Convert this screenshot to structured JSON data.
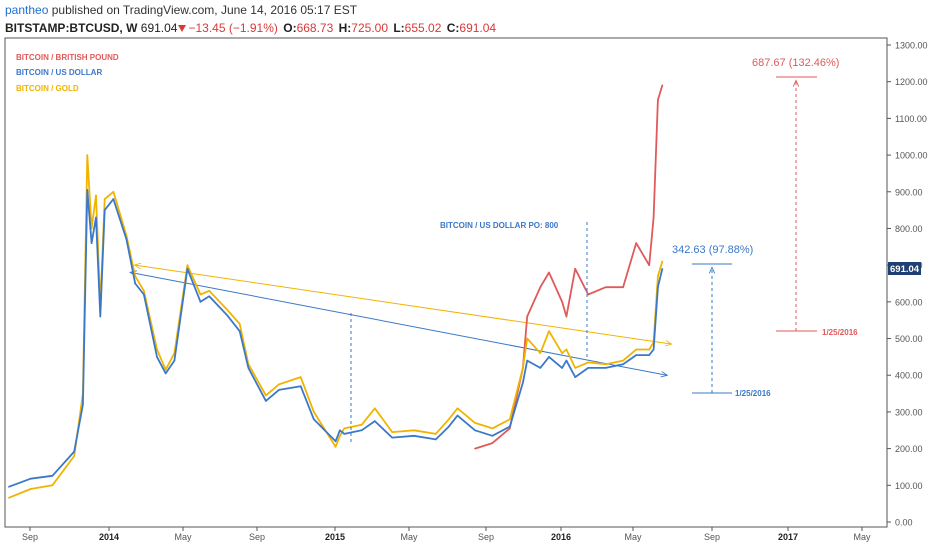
{
  "header": {
    "author": "pantheo",
    "published_text": "published on TradingView.com, June 14, 2016 05:17 EST",
    "symbol": "BITSTAMP:BTCUSD, W",
    "price": "691.04",
    "change": "−13.45 (−1.91%)",
    "open_label": "O:",
    "open": "668.73",
    "high_label": "H:",
    "high": "725.00",
    "low_label": "L:",
    "low": "655.02",
    "close_label": "C:",
    "close": "691.04"
  },
  "colors": {
    "gbp": "#e05a5a",
    "usd": "#3b78c8",
    "gold": "#f0b400",
    "axis_text": "#555555",
    "grid_border": "#555555",
    "price_badge": "#1f3f73"
  },
  "chart_data": {
    "type": "line",
    "y_axis": {
      "ylim": [
        0,
        1300
      ],
      "ticks": [
        "0.00",
        "100.00",
        "200.00",
        "300.00",
        "400.00",
        "500.00",
        "600.00",
        "700.00",
        "800.00",
        "900.00",
        "1000.00",
        "1100.00",
        "1200.00",
        "1300.00"
      ],
      "current_price_label": "691.04"
    },
    "x_axis": {
      "labels": [
        "Sep",
        "2014",
        "May",
        "Sep",
        "2015",
        "May",
        "Sep",
        "2016",
        "May",
        "Sep",
        "2017",
        "May"
      ]
    },
    "legend": [
      "BITCOIN / BRITISH POUND",
      "BITCOIN / US DOLLAR",
      "BITCOIN / GOLD"
    ],
    "series": [
      {
        "name": "BITCOIN / US DOLLAR",
        "x": [
          "2013-07-29",
          "2013-09-02",
          "2013-10-07",
          "2013-11-11",
          "2013-11-25",
          "2013-12-02",
          "2013-12-09",
          "2013-12-16",
          "2013-12-23",
          "2013-12-30",
          "2014-01-13",
          "2014-02-03",
          "2014-02-17",
          "2014-03-03",
          "2014-03-24",
          "2014-04-07",
          "2014-04-21",
          "2014-05-12",
          "2014-06-02",
          "2014-06-16",
          "2014-07-14",
          "2014-08-04",
          "2014-08-18",
          "2014-09-15",
          "2014-10-06",
          "2014-11-10",
          "2014-12-01",
          "2015-01-05",
          "2015-01-12",
          "2015-01-19",
          "2015-02-16",
          "2015-03-09",
          "2015-04-06",
          "2015-05-11",
          "2015-06-15",
          "2015-07-06",
          "2015-07-20",
          "2015-08-17",
          "2015-09-14",
          "2015-10-12",
          "2015-11-02",
          "2015-11-09",
          "2015-11-30",
          "2015-12-14",
          "2016-01-04",
          "2016-01-11",
          "2016-01-25",
          "2016-02-15",
          "2016-03-14",
          "2016-04-11",
          "2016-05-02",
          "2016-05-23",
          "2016-05-30",
          "2016-06-06",
          "2016-06-13"
        ],
        "values": [
          96,
          118,
          126,
          192,
          320,
          905,
          760,
          830,
          560,
          850,
          880,
          770,
          650,
          620,
          450,
          405,
          440,
          690,
          600,
          615,
          565,
          520,
          420,
          330,
          360,
          370,
          280,
          220,
          250,
          240,
          250,
          275,
          230,
          235,
          225,
          260,
          290,
          250,
          235,
          260,
          380,
          440,
          420,
          450,
          420,
          440,
          395,
          420,
          420,
          430,
          455,
          455,
          470,
          640,
          690
        ]
      },
      {
        "name": "BITCOIN / GOLD",
        "x": [
          "2013-07-29",
          "2013-09-02",
          "2013-10-07",
          "2013-11-11",
          "2013-11-25",
          "2013-12-02",
          "2013-12-09",
          "2013-12-16",
          "2013-12-23",
          "2013-12-30",
          "2014-01-13",
          "2014-02-03",
          "2014-02-17",
          "2014-03-03",
          "2014-03-24",
          "2014-04-07",
          "2014-04-21",
          "2014-05-12",
          "2014-06-02",
          "2014-06-16",
          "2014-07-14",
          "2014-08-04",
          "2014-08-18",
          "2014-09-15",
          "2014-10-06",
          "2014-11-10",
          "2014-12-01",
          "2015-01-05",
          "2015-01-12",
          "2015-01-19",
          "2015-02-16",
          "2015-03-09",
          "2015-04-06",
          "2015-05-11",
          "2015-06-15",
          "2015-07-06",
          "2015-07-20",
          "2015-08-17",
          "2015-09-14",
          "2015-10-12",
          "2015-11-02",
          "2015-11-09",
          "2015-11-30",
          "2015-12-14",
          "2016-01-04",
          "2016-01-11",
          "2016-01-25",
          "2016-02-15",
          "2016-03-14",
          "2016-04-11",
          "2016-05-02",
          "2016-05-23",
          "2016-05-30",
          "2016-06-06",
          "2016-06-13"
        ],
        "values": [
          66,
          90,
          100,
          180,
          350,
          1000,
          800,
          890,
          590,
          880,
          900,
          780,
          670,
          630,
          470,
          415,
          460,
          700,
          620,
          630,
          580,
          540,
          430,
          345,
          375,
          395,
          300,
          205,
          235,
          255,
          265,
          310,
          245,
          250,
          240,
          280,
          310,
          270,
          255,
          280,
          420,
          500,
          460,
          520,
          460,
          470,
          420,
          435,
          430,
          440,
          470,
          470,
          490,
          670,
          710
        ]
      },
      {
        "name": "BITCOIN / BRITISH POUND",
        "x": [
          "2015-08-17",
          "2015-09-14",
          "2015-10-12",
          "2015-11-02",
          "2015-11-09",
          "2015-11-30",
          "2015-12-14",
          "2016-01-04",
          "2016-01-11",
          "2016-01-25",
          "2016-02-15",
          "2016-03-14",
          "2016-04-11",
          "2016-05-02",
          "2016-05-23",
          "2016-05-30",
          "2016-06-06",
          "2016-06-13"
        ],
        "values": [
          200,
          215,
          255,
          420,
          560,
          640,
          680,
          600,
          560,
          690,
          620,
          640,
          640,
          760,
          700,
          830,
          1150,
          1190
        ]
      }
    ],
    "trendlines": [
      {
        "name": "gold-trendline",
        "from": [
          "2014-02-17",
          700
        ],
        "to": [
          "2016-06-27",
          485
        ]
      },
      {
        "name": "usd-trendline",
        "from": [
          "2014-02-10",
          680
        ],
        "to": [
          "2016-06-20",
          400
        ]
      }
    ],
    "annotations": {
      "po_label": "BITCOIN / US DOLLAR PO: 800",
      "usd_gain": "342.63 (97.88%)",
      "gbp_gain": "687.67 (132.46%)",
      "usd_date": "1/25/2016",
      "gbp_date": "1/25/2016"
    }
  }
}
